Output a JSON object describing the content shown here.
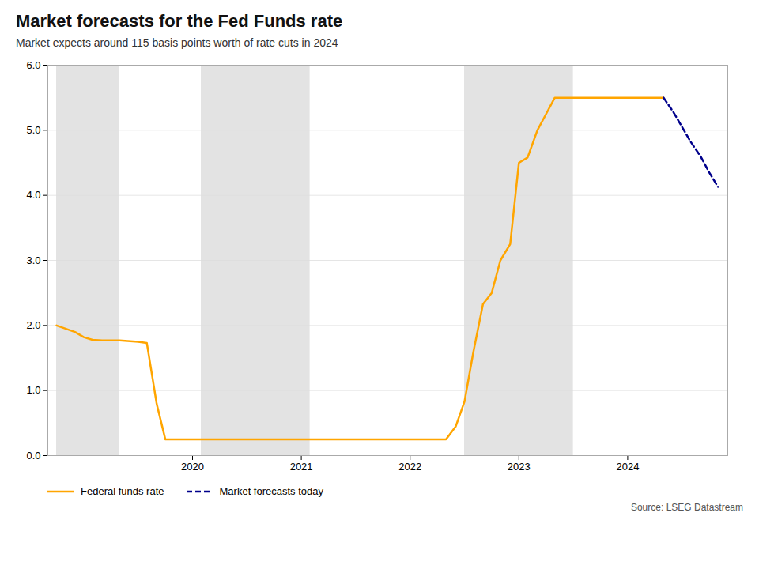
{
  "chart_data": {
    "type": "line",
    "title": "Market forecasts for the Fed Funds rate",
    "subtitle": "Market expects around 115 basis points worth of rate cuts in 2024",
    "source": "Source: LSEG Datastream",
    "x": [
      2018.75,
      2018.92,
      2019.0,
      2019.08,
      2019.17,
      2019.33,
      2019.5,
      2019.58,
      2019.67,
      2019.75,
      2019.83,
      2019.92,
      2020.0,
      2020.08,
      2020.17,
      2020.25,
      2020.33,
      2020.42,
      2020.5,
      2020.58,
      2020.67,
      2020.75,
      2020.83,
      2020.92,
      2021.0,
      2021.08,
      2021.17,
      2021.25,
      2021.33,
      2021.42,
      2021.5,
      2021.58,
      2021.67,
      2021.75,
      2021.83,
      2021.92,
      2022.0,
      2022.08,
      2022.17,
      2022.25,
      2022.33,
      2022.42,
      2022.5,
      2022.58,
      2022.67,
      2022.75,
      2022.83,
      2022.92,
      2023.0,
      2023.08,
      2023.17,
      2023.25,
      2023.33,
      2023.42,
      2023.5,
      2023.58,
      2023.67,
      2023.75,
      2023.83,
      2023.92,
      2024.0,
      2024.08,
      2024.17,
      2024.25,
      2024.33,
      2024.42,
      2024.5,
      2024.58,
      2024.67,
      2024.75,
      2024.83
    ],
    "series": [
      {
        "name": "Federal funds rate",
        "color": "#FFA500",
        "line_style": "solid",
        "values": [
          2.0,
          1.9,
          1.82,
          1.78,
          1.77,
          1.77,
          1.75,
          1.73,
          0.8,
          0.25,
          0.25,
          0.25,
          0.25,
          0.25,
          0.25,
          0.25,
          0.25,
          0.25,
          0.25,
          0.25,
          0.25,
          0.25,
          0.25,
          0.25,
          0.25,
          0.25,
          0.25,
          0.25,
          0.25,
          0.25,
          0.25,
          0.25,
          0.25,
          0.25,
          0.25,
          0.25,
          0.25,
          0.25,
          0.25,
          0.25,
          0.25,
          0.45,
          0.83,
          1.58,
          2.33,
          2.5,
          3.0,
          3.25,
          4.5,
          4.58,
          5.0,
          5.25,
          5.5,
          5.5,
          5.5,
          5.5,
          5.5,
          5.5,
          5.5,
          5.5,
          5.5,
          5.5,
          5.5,
          5.5,
          5.5,
          null,
          null,
          null,
          null,
          null,
          null
        ]
      },
      {
        "name": "Market forecasts today",
        "color": "#00008B",
        "line_style": "dashed",
        "values": [
          null,
          null,
          null,
          null,
          null,
          null,
          null,
          null,
          null,
          null,
          null,
          null,
          null,
          null,
          null,
          null,
          null,
          null,
          null,
          null,
          null,
          null,
          null,
          null,
          null,
          null,
          null,
          null,
          null,
          null,
          null,
          null,
          null,
          null,
          null,
          null,
          null,
          null,
          null,
          null,
          null,
          null,
          null,
          null,
          null,
          null,
          null,
          null,
          null,
          null,
          null,
          null,
          null,
          null,
          null,
          null,
          null,
          null,
          null,
          null,
          null,
          null,
          null,
          null,
          5.5,
          5.28,
          5.05,
          4.82,
          4.6,
          4.35,
          4.13
        ]
      }
    ],
    "shaded_regions": {
      "color": "#DCDCDC",
      "ranges": [
        [
          2018.75,
          2019.33
        ],
        [
          2020.08,
          2021.08
        ],
        [
          2022.5,
          2023.5
        ]
      ]
    },
    "xlim": [
      2018.67,
      2024.92
    ],
    "xticks": [
      2020,
      2021,
      2022,
      2023,
      2024
    ],
    "ylim": [
      0,
      6
    ],
    "yticks": [
      0,
      1,
      2,
      3,
      4,
      5,
      6
    ],
    "grid": "y",
    "legend": "bottom"
  }
}
